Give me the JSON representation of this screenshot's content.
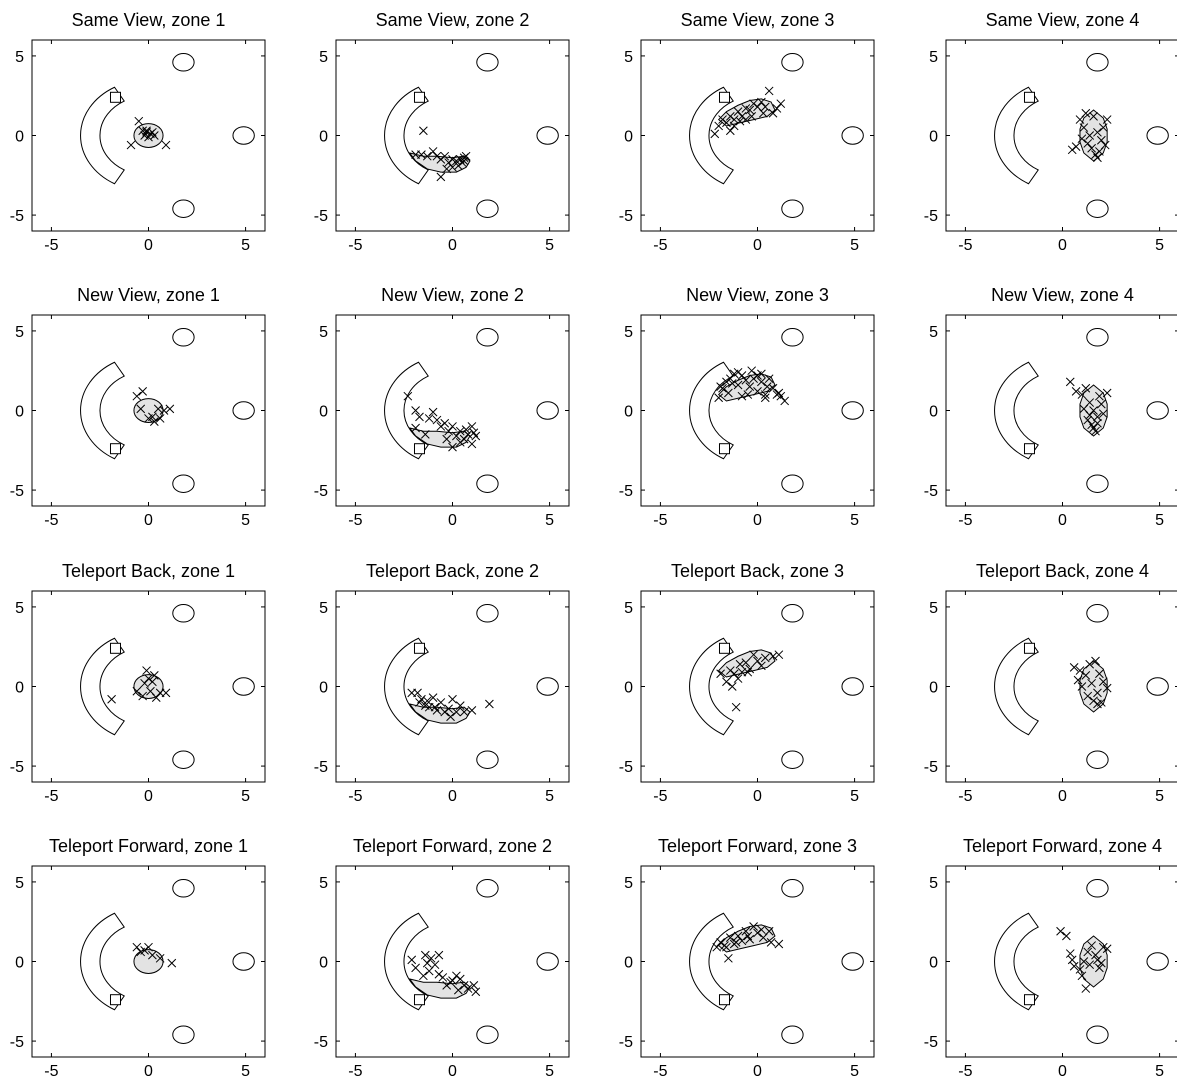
{
  "figure": {
    "axes": {
      "xticks": [
        -5,
        0,
        5
      ],
      "yticks": [
        5,
        0,
        -5
      ],
      "xlim": [
        -6,
        6
      ],
      "ylim": [
        -6,
        6
      ],
      "grid": false
    },
    "scene": {
      "circles": [
        [
          1.8,
          4.6
        ],
        [
          4.9,
          0
        ],
        [
          1.8,
          -4.6
        ]
      ],
      "circle_radius": 0.55,
      "arc": {
        "cx": 0,
        "cy": 0,
        "r_inner": 2.5,
        "r_outer": 3.5,
        "deg_start": 120,
        "deg_end": 240
      },
      "marker_colors": {
        "region_fill": "#e3e3e3",
        "stroke": "#000000"
      }
    }
  },
  "chart_data": [
    {
      "type": "scatter",
      "title": "Same View, zone 1",
      "square": [
        -1.7,
        2.4
      ],
      "region": "zone1",
      "points": [
        [
          -0.5,
          0.9
        ],
        [
          -0.3,
          0.3
        ],
        [
          -0.1,
          0.2
        ],
        [
          0.1,
          0.1
        ],
        [
          -0.2,
          0.0
        ],
        [
          0.0,
          -0.1
        ],
        [
          0.3,
          0.0
        ],
        [
          -0.9,
          -0.6
        ],
        [
          0.9,
          -0.6
        ],
        [
          0.2,
          0.2
        ],
        [
          -0.1,
          0.3
        ]
      ]
    },
    {
      "type": "scatter",
      "title": "Same View, zone 2",
      "square": [
        -1.7,
        2.4
      ],
      "region": "zone2",
      "points": [
        [
          -1.5,
          0.3
        ],
        [
          -1.9,
          -1.2
        ],
        [
          -1.6,
          -1.2
        ],
        [
          -1.3,
          -1.3
        ],
        [
          -1.0,
          -1.0
        ],
        [
          -0.8,
          -1.3
        ],
        [
          -0.6,
          -1.5
        ],
        [
          -0.4,
          -1.3
        ],
        [
          -0.2,
          -1.7
        ],
        [
          0.0,
          -1.5
        ],
        [
          0.2,
          -1.6
        ],
        [
          0.4,
          -1.5
        ],
        [
          0.6,
          -1.4
        ],
        [
          0.5,
          -1.7
        ],
        [
          0.3,
          -1.9
        ],
        [
          0.0,
          -2.0
        ],
        [
          -0.3,
          -2.1
        ],
        [
          -0.6,
          -2.6
        ],
        [
          0.6,
          -1.6
        ],
        [
          0.7,
          -1.3
        ]
      ]
    },
    {
      "type": "scatter",
      "title": "Same View, zone 3",
      "square": [
        -1.7,
        2.4
      ],
      "region": "zone3",
      "points": [
        [
          -2.2,
          0.1
        ],
        [
          -2.0,
          0.6
        ],
        [
          -1.8,
          1.0
        ],
        [
          -1.6,
          0.8
        ],
        [
          -1.4,
          1.2
        ],
        [
          -1.2,
          0.6
        ],
        [
          -1.0,
          1.5
        ],
        [
          -0.8,
          1.2
        ],
        [
          -0.6,
          1.0
        ],
        [
          -0.4,
          1.6
        ],
        [
          -0.2,
          2.0
        ],
        [
          0.0,
          1.8
        ],
        [
          0.2,
          2.1
        ],
        [
          0.4,
          1.8
        ],
        [
          0.6,
          2.8
        ],
        [
          0.8,
          1.4
        ],
        [
          1.0,
          1.7
        ],
        [
          1.2,
          2.0
        ],
        [
          -1.4,
          0.3
        ],
        [
          -0.9,
          0.9
        ],
        [
          -0.3,
          1.2
        ],
        [
          0.3,
          1.4
        ],
        [
          -1.2,
          1.0
        ],
        [
          -0.6,
          1.7
        ]
      ]
    },
    {
      "type": "scatter",
      "title": "Same View, zone 4",
      "square": [
        -1.7,
        2.4
      ],
      "region": "zone4",
      "points": [
        [
          0.9,
          1.0
        ],
        [
          1.2,
          1.4
        ],
        [
          1.1,
          0.5
        ],
        [
          1.0,
          -0.2
        ],
        [
          1.3,
          -0.5
        ],
        [
          1.5,
          -0.8
        ],
        [
          1.7,
          -1.2
        ],
        [
          1.9,
          -1.0
        ],
        [
          2.1,
          0.5
        ],
        [
          2.3,
          1.0
        ],
        [
          2.0,
          -0.3
        ],
        [
          1.8,
          0.2
        ],
        [
          1.6,
          1.2
        ],
        [
          0.7,
          -0.7
        ],
        [
          0.5,
          -0.9
        ],
        [
          1.4,
          0.0
        ],
        [
          1.8,
          -1.4
        ],
        [
          2.2,
          -0.6
        ]
      ]
    },
    {
      "type": "scatter",
      "title": "New View, zone 1",
      "square": [
        -1.7,
        -2.4
      ],
      "region": "zone1",
      "points": [
        [
          -0.6,
          0.9
        ],
        [
          -0.3,
          1.2
        ],
        [
          -0.4,
          0.1
        ],
        [
          0.0,
          -0.5
        ],
        [
          0.3,
          -0.7
        ],
        [
          0.6,
          -0.5
        ],
        [
          0.5,
          0.1
        ],
        [
          1.1,
          0.1
        ],
        [
          0.2,
          -0.4
        ],
        [
          0.8,
          0.0
        ]
      ]
    },
    {
      "type": "scatter",
      "title": "New View, zone 2",
      "square": [
        -1.7,
        -2.4
      ],
      "region": "zone2",
      "points": [
        [
          -2.3,
          0.9
        ],
        [
          -1.9,
          0.0
        ],
        [
          -1.7,
          -0.4
        ],
        [
          -1.9,
          -1.1
        ],
        [
          -1.2,
          -0.5
        ],
        [
          -1.0,
          -0.1
        ],
        [
          -0.8,
          -0.6
        ],
        [
          -0.6,
          -1.0
        ],
        [
          -0.4,
          -0.8
        ],
        [
          -0.2,
          -1.3
        ],
        [
          0.0,
          -1.0
        ],
        [
          0.2,
          -1.6
        ],
        [
          0.4,
          -1.3
        ],
        [
          0.6,
          -1.8
        ],
        [
          0.8,
          -1.5
        ],
        [
          1.0,
          -2.1
        ],
        [
          1.0,
          -1.0
        ],
        [
          0.4,
          -2.0
        ],
        [
          0.0,
          -2.3
        ],
        [
          -0.3,
          -1.8
        ],
        [
          -1.4,
          -1.5
        ],
        [
          1.2,
          -1.6
        ],
        [
          0.7,
          -1.2
        ],
        [
          1.1,
          -1.4
        ]
      ]
    },
    {
      "type": "scatter",
      "title": "New View, zone 3",
      "square": [
        -1.7,
        -2.4
      ],
      "region": "zone3",
      "points": [
        [
          -2.0,
          0.8
        ],
        [
          -1.8,
          1.4
        ],
        [
          -1.6,
          1.8
        ],
        [
          -1.4,
          2.0
        ],
        [
          -1.2,
          2.3
        ],
        [
          -1.0,
          2.4
        ],
        [
          -0.8,
          2.2
        ],
        [
          -0.6,
          1.9
        ],
        [
          -0.4,
          1.5
        ],
        [
          -0.2,
          2.0
        ],
        [
          0.0,
          1.2
        ],
        [
          0.2,
          1.8
        ],
        [
          0.4,
          1.0
        ],
        [
          0.6,
          2.0
        ],
        [
          0.8,
          1.4
        ],
        [
          1.0,
          1.0
        ],
        [
          1.2,
          0.9
        ],
        [
          1.4,
          0.6
        ],
        [
          -1.5,
          1.1
        ],
        [
          -1.0,
          1.6
        ],
        [
          -0.5,
          1.0
        ],
        [
          0.2,
          2.3
        ],
        [
          -1.3,
          1.7
        ],
        [
          -0.8,
          0.9
        ],
        [
          0.4,
          0.8
        ],
        [
          0.0,
          2.2
        ],
        [
          1.1,
          1.1
        ],
        [
          -1.9,
          1.5
        ],
        [
          -0.3,
          2.5
        ],
        [
          0.5,
          1.5
        ]
      ]
    },
    {
      "type": "scatter",
      "title": "New View, zone 4",
      "square": [
        -1.7,
        -2.4
      ],
      "region": "zone4",
      "points": [
        [
          0.4,
          1.8
        ],
        [
          0.7,
          1.2
        ],
        [
          1.0,
          1.0
        ],
        [
          1.2,
          1.4
        ],
        [
          1.4,
          0.5
        ],
        [
          1.6,
          0.0
        ],
        [
          1.8,
          -0.4
        ],
        [
          1.5,
          -0.9
        ],
        [
          1.7,
          -1.3
        ],
        [
          1.3,
          -0.6
        ],
        [
          2.0,
          0.4
        ],
        [
          2.3,
          1.1
        ],
        [
          1.1,
          0.1
        ],
        [
          1.9,
          0.9
        ],
        [
          1.6,
          -1.1
        ],
        [
          2.1,
          -0.2
        ],
        [
          1.4,
          -0.3
        ],
        [
          1.8,
          -0.8
        ]
      ]
    },
    {
      "type": "scatter",
      "title": "Teleport Back, zone 1",
      "square": [
        -1.7,
        2.4
      ],
      "region": "zone1",
      "points": [
        [
          -1.9,
          -0.8
        ],
        [
          -0.6,
          -0.3
        ],
        [
          -0.3,
          -0.6
        ],
        [
          -0.1,
          1.0
        ],
        [
          0.0,
          0.5
        ],
        [
          0.1,
          -0.3
        ],
        [
          0.2,
          0.3
        ],
        [
          0.4,
          -0.7
        ],
        [
          0.6,
          -0.4
        ],
        [
          0.9,
          -0.4
        ],
        [
          -0.2,
          0.2
        ],
        [
          0.3,
          0.7
        ]
      ]
    },
    {
      "type": "scatter",
      "title": "Teleport Back, zone 2",
      "square": [
        -1.7,
        2.4
      ],
      "region": "zone2",
      "points": [
        [
          -2.1,
          -0.4
        ],
        [
          -1.8,
          -0.4
        ],
        [
          -1.6,
          -0.8
        ],
        [
          -1.4,
          -1.2
        ],
        [
          -1.2,
          -1.3
        ],
        [
          -1.0,
          -0.7
        ],
        [
          -0.8,
          -1.5
        ],
        [
          -0.6,
          -1.0
        ],
        [
          -0.4,
          -1.6
        ],
        [
          -0.2,
          -1.4
        ],
        [
          0.0,
          -0.8
        ],
        [
          0.2,
          -1.6
        ],
        [
          0.4,
          -1.2
        ],
        [
          0.6,
          -1.6
        ],
        [
          1.0,
          -1.5
        ],
        [
          1.9,
          -1.1
        ],
        [
          -1.7,
          -1.0
        ],
        [
          -0.9,
          -1.3
        ],
        [
          -0.1,
          -1.9
        ],
        [
          -1.3,
          -0.9
        ]
      ]
    },
    {
      "type": "scatter",
      "title": "Teleport Back, zone 3",
      "square": [
        -1.7,
        2.4
      ],
      "region": "zone3",
      "points": [
        [
          -1.9,
          0.8
        ],
        [
          -1.6,
          0.3
        ],
        [
          -1.4,
          1.0
        ],
        [
          -1.2,
          0.8
        ],
        [
          -1.1,
          -1.3
        ],
        [
          -1.0,
          0.5
        ],
        [
          -0.8,
          0.9
        ],
        [
          -0.6,
          1.5
        ],
        [
          -0.4,
          1.1
        ],
        [
          -0.2,
          2.0
        ],
        [
          0.0,
          1.6
        ],
        [
          0.2,
          1.3
        ],
        [
          0.4,
          1.8
        ],
        [
          0.8,
          1.9
        ],
        [
          1.1,
          2.0
        ],
        [
          -0.9,
          1.4
        ],
        [
          -1.3,
          0.0
        ],
        [
          -0.5,
          0.9
        ]
      ]
    },
    {
      "type": "scatter",
      "title": "Teleport Back, zone 4",
      "square": [
        -1.7,
        2.4
      ],
      "region": "zone4",
      "points": [
        [
          0.6,
          1.2
        ],
        [
          0.9,
          1.0
        ],
        [
          1.2,
          0.7
        ],
        [
          1.4,
          1.4
        ],
        [
          1.7,
          1.6
        ],
        [
          1.9,
          0.8
        ],
        [
          2.1,
          0.3
        ],
        [
          1.8,
          -0.4
        ],
        [
          1.6,
          -0.9
        ],
        [
          1.8,
          -1.1
        ],
        [
          1.0,
          0.0
        ],
        [
          0.8,
          0.4
        ],
        [
          2.3,
          -0.1
        ],
        [
          1.3,
          -0.6
        ],
        [
          1.5,
          0.2
        ],
        [
          2.0,
          -1.0
        ]
      ]
    },
    {
      "type": "scatter",
      "title": "Teleport Forward, zone 1",
      "square": [
        -1.7,
        -2.4
      ],
      "region": "zone1",
      "points": [
        [
          -0.6,
          0.9
        ],
        [
          -0.2,
          0.7
        ],
        [
          0.2,
          0.4
        ],
        [
          0.6,
          0.2
        ],
        [
          1.2,
          -0.1
        ],
        [
          -0.4,
          0.6
        ],
        [
          0.0,
          0.9
        ]
      ]
    },
    {
      "type": "scatter",
      "title": "Teleport Forward, zone 2",
      "square": [
        -1.7,
        -2.4
      ],
      "region": "zone2",
      "points": [
        [
          -2.1,
          0.1
        ],
        [
          -1.9,
          -0.4
        ],
        [
          -1.5,
          -0.9
        ],
        [
          -1.4,
          0.4
        ],
        [
          -1.2,
          -0.6
        ],
        [
          -1.1,
          0.2
        ],
        [
          -0.9,
          -0.2
        ],
        [
          -0.7,
          -0.8
        ],
        [
          -0.5,
          -1.0
        ],
        [
          -0.3,
          -1.5
        ],
        [
          0.0,
          -1.2
        ],
        [
          0.2,
          -0.9
        ],
        [
          0.4,
          -1.1
        ],
        [
          0.6,
          -1.5
        ],
        [
          0.8,
          -1.7
        ],
        [
          1.1,
          -1.5
        ],
        [
          1.2,
          -1.9
        ],
        [
          -0.7,
          0.4
        ],
        [
          -1.3,
          -0.1
        ],
        [
          0.3,
          -1.8
        ],
        [
          -0.1,
          -1.3
        ]
      ]
    },
    {
      "type": "scatter",
      "title": "Teleport Forward, zone 3",
      "square": [
        -1.7,
        -2.4
      ],
      "region": "zone3",
      "points": [
        [
          -2.1,
          0.9
        ],
        [
          -1.9,
          1.2
        ],
        [
          -1.7,
          1.0
        ],
        [
          -1.5,
          0.2
        ],
        [
          -1.4,
          1.5
        ],
        [
          -1.2,
          1.1
        ],
        [
          -1.0,
          1.6
        ],
        [
          -0.8,
          1.3
        ],
        [
          -0.6,
          1.9
        ],
        [
          -0.4,
          1.4
        ],
        [
          -0.2,
          2.2
        ],
        [
          0.0,
          1.8
        ],
        [
          0.3,
          1.5
        ],
        [
          0.6,
          1.9
        ],
        [
          0.7,
          1.2
        ],
        [
          1.1,
          1.1
        ],
        [
          -1.6,
          0.9
        ],
        [
          -1.1,
          1.2
        ],
        [
          -0.5,
          1.6
        ],
        [
          0.2,
          2.0
        ]
      ]
    },
    {
      "type": "scatter",
      "title": "Teleport Forward, zone 4",
      "square": [
        -1.7,
        -2.4
      ],
      "region": "zone4",
      "points": [
        [
          -0.1,
          1.9
        ],
        [
          0.2,
          1.6
        ],
        [
          0.4,
          0.5
        ],
        [
          0.5,
          0.1
        ],
        [
          0.6,
          -0.3
        ],
        [
          0.9,
          -0.5
        ],
        [
          1.1,
          0.0
        ],
        [
          1.3,
          0.6
        ],
        [
          1.5,
          1.0
        ],
        [
          1.7,
          0.4
        ],
        [
          1.9,
          -0.4
        ],
        [
          2.1,
          0.9
        ],
        [
          2.3,
          0.8
        ],
        [
          1.2,
          -1.7
        ],
        [
          1.0,
          -0.9
        ],
        [
          1.4,
          -0.2
        ],
        [
          1.8,
          0.1
        ],
        [
          2.0,
          -0.1
        ]
      ]
    }
  ]
}
